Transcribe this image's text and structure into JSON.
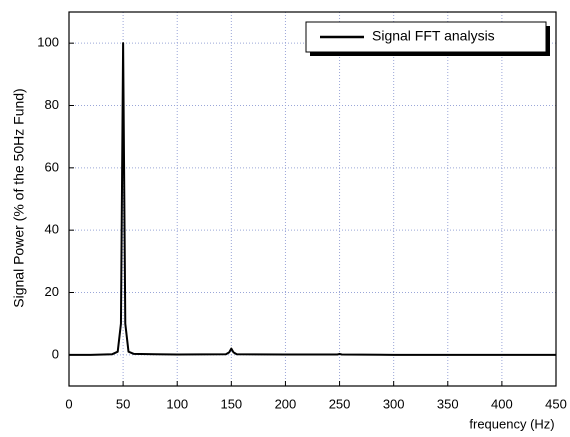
{
  "chart_data": {
    "type": "line",
    "xlabel": "frequency (Hz)",
    "ylabel": "Signal Power (% of the 50Hz Fund)",
    "series": [
      {
        "name": "Signal FFT analysis",
        "color": "#000000",
        "x": [
          0,
          20,
          40,
          45,
          48,
          50,
          52,
          55,
          60,
          80,
          100,
          145,
          148,
          150,
          152,
          155,
          200,
          248,
          250,
          252,
          300,
          450
        ],
        "values": [
          0,
          0,
          0.2,
          1,
          10,
          100,
          10,
          1,
          0.3,
          0.2,
          0.1,
          0.2,
          0.8,
          2,
          0.8,
          0.2,
          0.1,
          0.1,
          0.3,
          0.1,
          0,
          0
        ]
      }
    ],
    "xlim": [
      0,
      450
    ],
    "xticks": [
      0,
      50,
      100,
      150,
      200,
      250,
      300,
      350,
      400,
      450
    ],
    "ylim": [
      -10,
      110
    ],
    "yticks": [
      0,
      20,
      40,
      60,
      80,
      100
    ],
    "grid": true,
    "legend": "upper right"
  }
}
